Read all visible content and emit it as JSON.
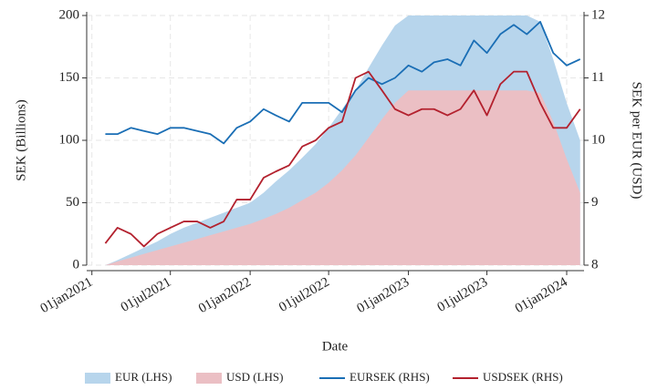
{
  "chart_data": {
    "type": "area_line",
    "xlabel": "Date",
    "ylabel": "SEK (Billions)",
    "y2label": "SEK per EUR (USD)",
    "x": [
      "2021-02-01",
      "2021-03-01",
      "2021-04-01",
      "2021-05-01",
      "2021-06-01",
      "2021-07-01",
      "2021-08-01",
      "2021-09-01",
      "2021-10-01",
      "2021-11-01",
      "2021-12-01",
      "2022-01-01",
      "2022-02-01",
      "2022-03-01",
      "2022-04-01",
      "2022-05-01",
      "2022-06-01",
      "2022-07-01",
      "2022-08-01",
      "2022-09-01",
      "2022-10-01",
      "2022-11-01",
      "2022-12-01",
      "2023-01-01",
      "2023-02-01",
      "2023-03-01",
      "2023-04-01",
      "2023-05-01",
      "2023-06-01",
      "2023-07-01",
      "2023-08-01",
      "2023-09-01",
      "2023-10-01",
      "2023-11-01",
      "2023-12-01",
      "2024-01-01",
      "2024-02-01"
    ],
    "series": [
      {
        "name": "EUR (LHS)",
        "kind": "area",
        "color": "#b7d5ec",
        "values": [
          0,
          4,
          9,
          14,
          19,
          25,
          30,
          34,
          38,
          42,
          46,
          50,
          58,
          67,
          76,
          86,
          97,
          110,
          125,
          140,
          158,
          176,
          192,
          200,
          200,
          200,
          200,
          200,
          200,
          200,
          200,
          200,
          200,
          195,
          165,
          130,
          100
        ]
      },
      {
        "name": "USD (LHS)",
        "kind": "area",
        "color": "#ebbfc4",
        "values": [
          0,
          3,
          6,
          9,
          12,
          15,
          18,
          21,
          24,
          27,
          30,
          33,
          37,
          41,
          46,
          52,
          58,
          66,
          76,
          88,
          102,
          117,
          130,
          140,
          140,
          140,
          140,
          140,
          140,
          140,
          140,
          140,
          140,
          138,
          115,
          85,
          58
        ]
      },
      {
        "name": "EURSEK (RHS)",
        "kind": "line",
        "axis": "y2",
        "color": "#1a6eb5",
        "values": [
          10.1,
          10.1,
          10.2,
          10.15,
          10.1,
          10.2,
          10.2,
          10.15,
          10.1,
          9.95,
          10.2,
          10.3,
          10.5,
          10.4,
          10.3,
          10.6,
          10.6,
          10.6,
          10.45,
          10.8,
          11.0,
          10.9,
          11.0,
          11.2,
          11.1,
          11.25,
          11.3,
          11.2,
          11.6,
          11.4,
          11.7,
          11.85,
          11.7,
          11.9,
          11.4,
          11.2,
          11.3
        ]
      },
      {
        "name": "USDSEK (RHS)",
        "kind": "line",
        "axis": "y2",
        "color": "#b3212e",
        "values": [
          8.35,
          8.6,
          8.5,
          8.3,
          8.5,
          8.6,
          8.7,
          8.7,
          8.6,
          8.7,
          9.05,
          9.05,
          9.4,
          9.5,
          9.6,
          9.9,
          10.0,
          10.2,
          10.3,
          11.0,
          11.1,
          10.8,
          10.5,
          10.4,
          10.5,
          10.5,
          10.4,
          10.5,
          10.8,
          10.4,
          10.9,
          11.1,
          11.1,
          10.6,
          10.2,
          10.2,
          10.5
        ]
      }
    ],
    "xlim": [
      "2020-12-20",
      "2024-02-10"
    ],
    "xticks": [
      {
        "value": "2021-01-01",
        "label": "01jan2021"
      },
      {
        "value": "2021-07-01",
        "label": "01jul2021"
      },
      {
        "value": "2022-01-01",
        "label": "01jan2022"
      },
      {
        "value": "2022-07-01",
        "label": "01jul2022"
      },
      {
        "value": "2023-01-01",
        "label": "01jan2023"
      },
      {
        "value": "2023-07-01",
        "label": "01jul2023"
      },
      {
        "value": "2024-01-01",
        "label": "01jan2024"
      }
    ],
    "ylim": [
      0,
      200
    ],
    "yticks": [
      0,
      50,
      100,
      150,
      200
    ],
    "y2lim": [
      8,
      12
    ],
    "y2ticks": [
      8,
      9,
      10,
      11,
      12
    ],
    "grid": true,
    "legend": "bottom"
  }
}
